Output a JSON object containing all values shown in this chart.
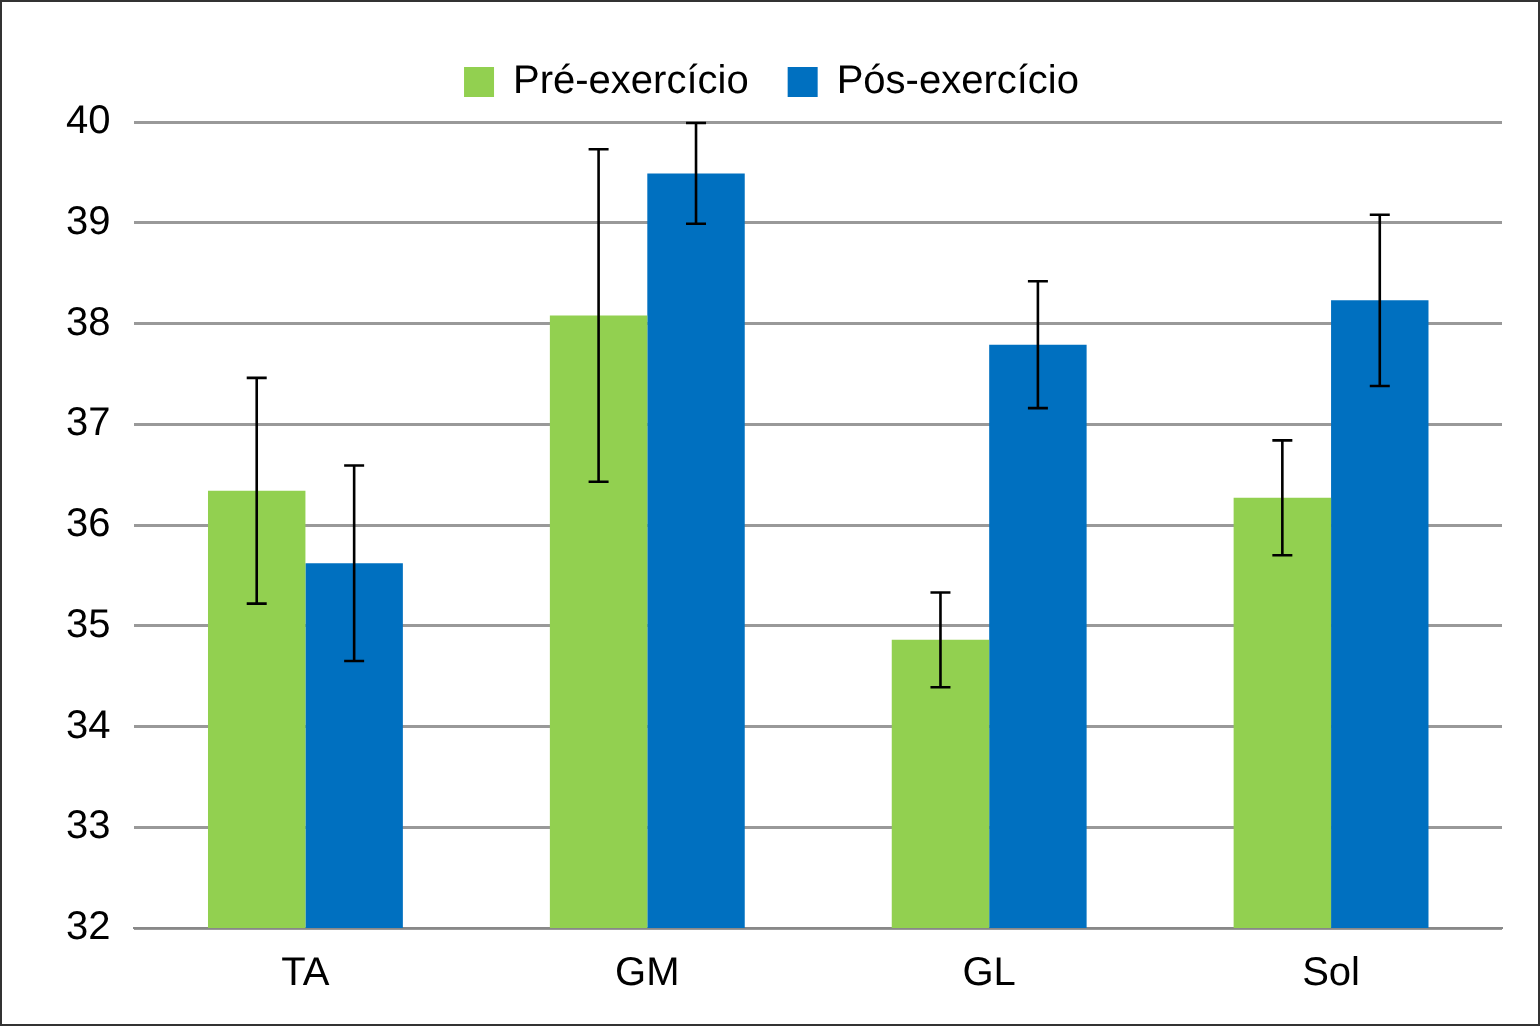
{
  "chart_data": {
    "type": "bar",
    "categories": [
      "TA",
      "GM",
      "GL",
      "Sol"
    ],
    "series": [
      {
        "name": "Pré-exercício",
        "color": "#92d050",
        "values": [
          36.34,
          38.08,
          34.86,
          36.27
        ],
        "errors": [
          1.12,
          1.65,
          0.47,
          0.57
        ]
      },
      {
        "name": "Pós-exercício",
        "color": "#0070c0",
        "values": [
          35.62,
          39.49,
          37.79,
          38.23
        ],
        "errors": [
          0.97,
          0.5,
          0.63,
          0.85
        ]
      }
    ],
    "ylim": [
      32,
      40
    ],
    "yticks": [
      32,
      33,
      34,
      35,
      36,
      37,
      38,
      39,
      40
    ],
    "grid": "y",
    "legend": "top"
  }
}
